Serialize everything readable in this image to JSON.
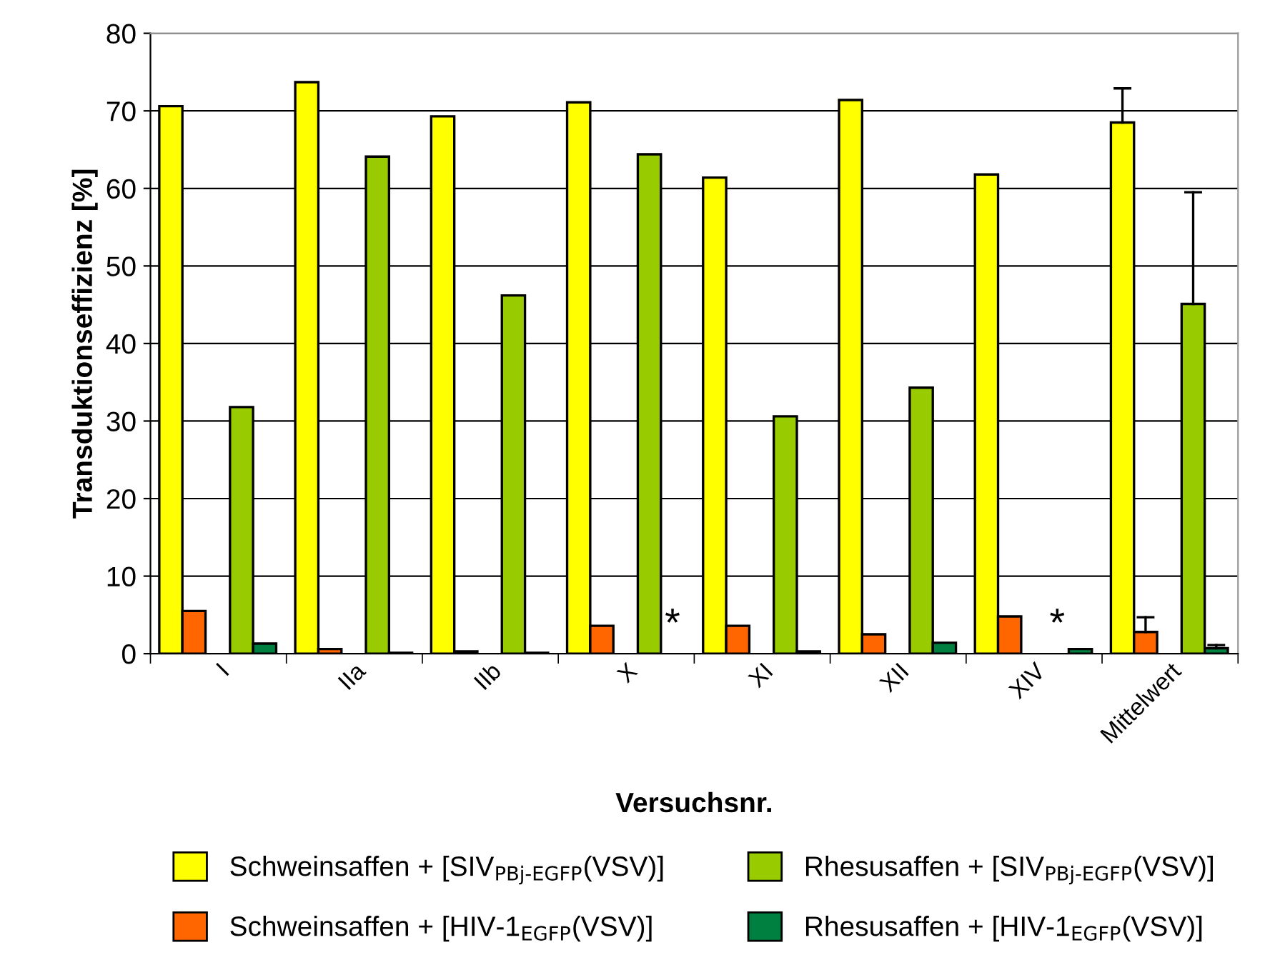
{
  "chart_data": {
    "type": "bar",
    "xlabel": "Versuchsnr.",
    "ylabel": "Transduktionseffizienz [%]",
    "categories": [
      "I",
      "IIa",
      "IIb",
      "X",
      "XI",
      "XII",
      "XIV",
      "Mittelwert"
    ],
    "series": [
      {
        "name": "Schweinsaffen + [SIV$_{PBj‐EGFP}$(VSV)]",
        "color": "#ffff00",
        "values": [
          70.6,
          73.7,
          69.3,
          71.1,
          61.4,
          71.4,
          61.8,
          68.5
        ],
        "errors": [
          null,
          null,
          null,
          null,
          null,
          null,
          null,
          [
            68.5,
            72.9
          ]
        ]
      },
      {
        "name": "Schweinsaffen + [HIV-1$_{EGFP}$(VSV)]",
        "color": "#ff6600",
        "values": [
          5.5,
          0.6,
          0.3,
          3.6,
          3.6,
          2.5,
          4.8,
          2.8
        ],
        "errors": [
          null,
          null,
          null,
          null,
          null,
          null,
          null,
          [
            2.8,
            4.7
          ]
        ]
      },
      {
        "name": "Rhesusaffen + [SIV$_{PBj‐EGFP}$(VSV)]",
        "color": "#99cc00",
        "values": [
          31.8,
          64.1,
          46.2,
          64.4,
          30.6,
          34.3,
          null,
          45.1
        ],
        "errors": [
          null,
          null,
          null,
          null,
          null,
          null,
          null,
          [
            45.1,
            59.5
          ]
        ]
      },
      {
        "name": "Rhesusaffen + [HIV-1$_{EGFP}$(VSV)]",
        "color": "#008040",
        "values": [
          1.3,
          0.1,
          0.1,
          null,
          0.3,
          1.4,
          0.6,
          0.7
        ],
        "errors": [
          null,
          null,
          null,
          null,
          null,
          null,
          null,
          [
            0.7,
            1.1
          ]
        ]
      }
    ],
    "annotations": [
      "*",
      "*"
    ],
    "ylim": [
      0,
      80
    ],
    "yticks": [
      0,
      10,
      20,
      30,
      40,
      50,
      60,
      70,
      80
    ],
    "grid": "y",
    "legend": "bottom"
  }
}
